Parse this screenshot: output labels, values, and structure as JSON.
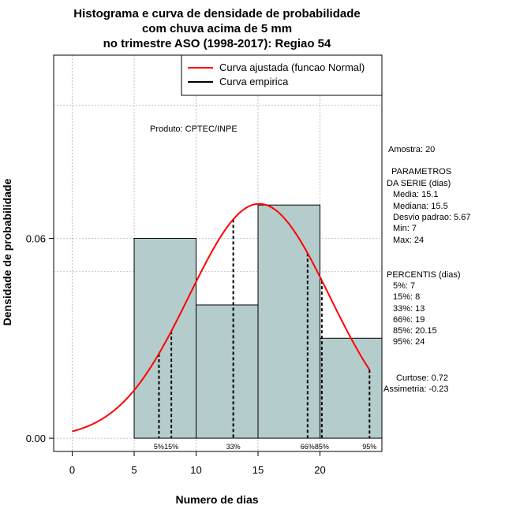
{
  "title_lines": [
    "Histograma e curva de densidade de probabilidade",
    "com chuva acima de 5 mm",
    "no trimestre ASO (1998-2017): Regiao 54"
  ],
  "chart_data": {
    "type": "bar",
    "title": "Histograma e curva de densidade de probabilidade com chuva acima de 5 mm no trimestre ASO (1998-2017): Regiao 54",
    "xlabel": "Numero de dias",
    "ylabel": "Densidade de probabilidade",
    "xlim": [
      -1.5,
      25
    ],
    "ylim": [
      -0.004,
      0.115
    ],
    "xticks": [
      0,
      5,
      10,
      15,
      20
    ],
    "yticks": [
      0.0,
      0.06
    ],
    "ytick_labels": [
      "0.00",
      "0.06"
    ],
    "xgrid": [
      0,
      5,
      10,
      15,
      20
    ],
    "ygrid": [
      0,
      0.06
    ],
    "grid_extra_y": [
      0.1,
      0.05
    ],
    "bin_color": "#b5cccc",
    "bins": [
      {
        "x0": 5,
        "x1": 10,
        "density": 0.06
      },
      {
        "x0": 10,
        "x1": 15,
        "density": 0.04
      },
      {
        "x0": 15,
        "x1": 20,
        "density": 0.07
      },
      {
        "x0": 20,
        "x1": 25,
        "density": 0.03
      }
    ],
    "normal_curve": {
      "name": "Curva ajustada (funcao Normal)",
      "color": "#ff0000",
      "mean": 15.1,
      "sd": 5.67,
      "x_from": 0,
      "x_to": 24
    },
    "empirical_curve": {
      "name": "Curva empirica",
      "color": "#000000"
    },
    "percentile_lines": [
      {
        "label": "5%",
        "x": 7
      },
      {
        "label": "15%",
        "x": 8
      },
      {
        "label": "33%",
        "x": 13
      },
      {
        "label": "66%",
        "x": 19
      },
      {
        "label": "85%",
        "x": 20.15
      },
      {
        "label": "95%",
        "x": 24
      }
    ],
    "legend_position": "top-right"
  },
  "annotations": {
    "produto": "Produto: CPTEC/INPE",
    "amostra": "Amostra: 20",
    "parametros_title": "PARAMETROS",
    "parametros_subtitle": "DA SERIE (dias)",
    "parametros": [
      "Media: 15.1",
      "Mediana: 15.5",
      "Desvio padrao: 5.67",
      "Min: 7",
      "Max: 24"
    ],
    "percentis_title": "PERCENTIS (dias)",
    "percentis": [
      "5%: 7",
      "15%: 8",
      "33%: 13",
      "66%: 19",
      "85%: 20.15",
      "95%: 24"
    ],
    "curtose": "Curtose: 0.72",
    "assimetria": "Assimetria: -0.23"
  }
}
